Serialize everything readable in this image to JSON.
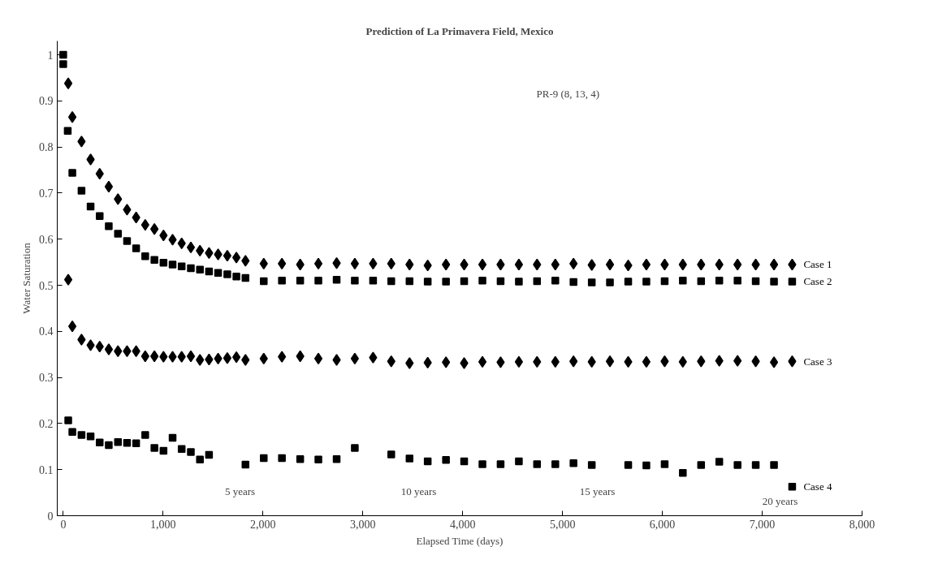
{
  "chart_data": {
    "type": "scatter",
    "title": "Prediction of La Primavera Field, Mexico",
    "xlabel": "Elapsed Time (days)",
    "ylabel": "Water Saturation",
    "xlim": [
      -60,
      8000
    ],
    "ylim": [
      0,
      1.03
    ],
    "xticks": [
      0,
      {
        "value": 1000,
        "label": "1,000"
      },
      {
        "value": 2000,
        "label": "2,000"
      },
      {
        "value": 3000,
        "label": "3,000"
      },
      {
        "value": 4000,
        "label": "4,000"
      },
      {
        "value": 5000,
        "label": "5,000"
      },
      {
        "value": 6000,
        "label": "6,000"
      },
      {
        "value": 7000,
        "label": "7,000"
      },
      {
        "value": 8000,
        "label": "8,000"
      }
    ],
    "yticks": [
      0,
      0.1,
      0.2,
      0.3,
      0.4,
      0.5,
      0.6,
      0.7,
      0.8,
      0.9,
      1
    ],
    "grid": false,
    "annotations": [
      "PR-9 (8, 13, 4)",
      "5 years",
      "10 years",
      "15 years",
      "20 years"
    ],
    "series": [
      {
        "name": "Case 1",
        "color": "#000000",
        "marker": "diamond",
        "x": [
          50,
          91,
          183,
          274,
          365,
          456,
          548,
          639,
          730,
          821,
          913,
          1004,
          1095,
          1186,
          1278,
          1369,
          1460,
          1551,
          1643,
          1734,
          1825,
          2008,
          2190,
          2373,
          2555,
          2738,
          2920,
          3103,
          3285,
          3468,
          3650,
          3833,
          4015,
          4198,
          4380,
          4563,
          4745,
          4928,
          5110,
          5293,
          5475,
          5658,
          5840,
          6023,
          6205,
          6388,
          6570,
          6753,
          6935,
          7118,
          7300
        ],
        "values": [
          0.938,
          0.865,
          0.812,
          0.773,
          0.742,
          0.714,
          0.687,
          0.664,
          0.647,
          0.631,
          0.622,
          0.608,
          0.599,
          0.591,
          0.582,
          0.575,
          0.57,
          0.567,
          0.564,
          0.56,
          0.553,
          0.547,
          0.547,
          0.545,
          0.547,
          0.548,
          0.547,
          0.547,
          0.547,
          0.545,
          0.543,
          0.545,
          0.545,
          0.545,
          0.545,
          0.545,
          0.545,
          0.545,
          0.547,
          0.544,
          0.545,
          0.543,
          0.545,
          0.545,
          0.545,
          0.545,
          0.545,
          0.545,
          0.545,
          0.545,
          0.545
        ]
      },
      {
        "name": "Case 2",
        "color": "#000000",
        "marker": "square",
        "x": [
          0,
          0,
          45,
          91,
          183,
          274,
          365,
          456,
          548,
          639,
          730,
          821,
          913,
          1004,
          1095,
          1186,
          1278,
          1369,
          1460,
          1551,
          1643,
          1734,
          1825,
          2008,
          2190,
          2373,
          2555,
          2738,
          2920,
          3103,
          3285,
          3468,
          3650,
          3833,
          4015,
          4198,
          4380,
          4563,
          4745,
          4928,
          5110,
          5293,
          5475,
          5658,
          5840,
          6023,
          6205,
          6388,
          6570,
          6753,
          6935,
          7118,
          7300
        ],
        "values": [
          1.0,
          0.98,
          0.835,
          0.744,
          0.705,
          0.671,
          0.65,
          0.628,
          0.612,
          0.596,
          0.58,
          0.563,
          0.555,
          0.549,
          0.545,
          0.541,
          0.537,
          0.534,
          0.53,
          0.527,
          0.524,
          0.519,
          0.516,
          0.509,
          0.51,
          0.51,
          0.51,
          0.512,
          0.51,
          0.51,
          0.509,
          0.509,
          0.508,
          0.508,
          0.509,
          0.51,
          0.509,
          0.508,
          0.509,
          0.51,
          0.507,
          0.506,
          0.506,
          0.508,
          0.508,
          0.509,
          0.51,
          0.509,
          0.51,
          0.51,
          0.509,
          0.508,
          0.508
        ]
      },
      {
        "name": "Case 3",
        "color": "#000000",
        "marker": "diamond",
        "x": [
          50,
          91,
          183,
          274,
          365,
          456,
          548,
          639,
          730,
          821,
          913,
          1004,
          1095,
          1186,
          1278,
          1369,
          1460,
          1551,
          1643,
          1734,
          1825,
          2008,
          2190,
          2373,
          2555,
          2738,
          2920,
          3103,
          3285,
          3468,
          3650,
          3833,
          4015,
          4198,
          4380,
          4563,
          4745,
          4928,
          5110,
          5293,
          5475,
          5658,
          5840,
          6023,
          6205,
          6388,
          6570,
          6753,
          6935,
          7118,
          7300
        ],
        "values": [
          0.512,
          0.411,
          0.382,
          0.37,
          0.367,
          0.361,
          0.357,
          0.357,
          0.357,
          0.346,
          0.346,
          0.345,
          0.345,
          0.345,
          0.346,
          0.338,
          0.339,
          0.341,
          0.342,
          0.344,
          0.338,
          0.341,
          0.345,
          0.346,
          0.341,
          0.338,
          0.341,
          0.343,
          0.335,
          0.331,
          0.332,
          0.333,
          0.331,
          0.334,
          0.333,
          0.334,
          0.334,
          0.334,
          0.335,
          0.334,
          0.335,
          0.334,
          0.334,
          0.335,
          0.334,
          0.335,
          0.336,
          0.336,
          0.335,
          0.333,
          0.335
        ]
      },
      {
        "name": "Case 4",
        "color": "#000000",
        "marker": "square",
        "x": [
          50,
          91,
          183,
          274,
          365,
          456,
          548,
          639,
          730,
          821,
          913,
          1004,
          1095,
          1186,
          1278,
          1369,
          1460,
          1551,
          1643,
          1734,
          1825,
          2008,
          2190,
          2373,
          2555,
          2738,
          2920,
          3103,
          3285,
          3468,
          3650,
          3833,
          4015,
          4198,
          4380,
          4563,
          4745,
          4928,
          5110,
          5293,
          5475,
          5658,
          5840,
          6023,
          6205,
          6388,
          6570,
          6753,
          6935,
          7118,
          7300
        ],
        "values": [
          0.207,
          0.182,
          0.175,
          0.172,
          0.159,
          0.153,
          0.16,
          0.158,
          0.157,
          0.175,
          0.147,
          0.141,
          0.169,
          0.145,
          0.138,
          0.122,
          0.132,
          null,
          null,
          null,
          0.111,
          0.125,
          0.125,
          0.123,
          0.122,
          0.123,
          0.147,
          null,
          0.133,
          0.124,
          0.118,
          0.121,
          0.118,
          0.112,
          0.112,
          0.118,
          0.112,
          0.112,
          0.114,
          0.11,
          null,
          0.11,
          0.109,
          0.112,
          0.093,
          0.11,
          0.117,
          0.11,
          0.11,
          0.11,
          0.063
        ]
      }
    ]
  }
}
